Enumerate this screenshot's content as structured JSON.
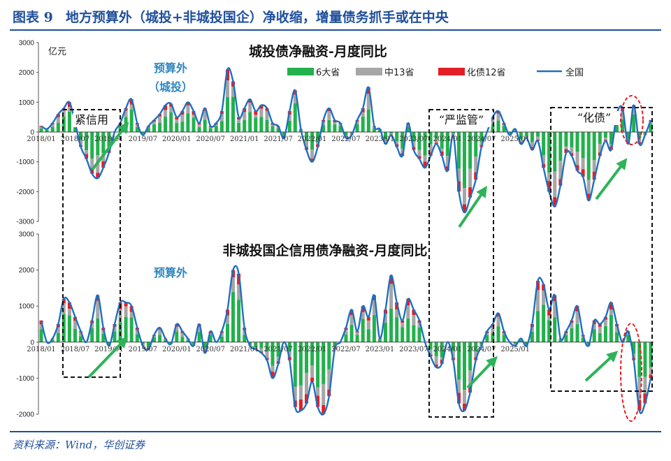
{
  "figure": {
    "number": "图表 9",
    "title": "地方预算外（城投+非城投国企）净收缩，增量债务抓手或在中央",
    "source": "资料来源：Wind，华创证券"
  },
  "colors": {
    "green": "#22b14c",
    "gray": "#a6a6a6",
    "red": "#e41e26",
    "line": "#1f6fc0",
    "title_blue": "#1f4f9c",
    "annotation_blue": "#2e86c1",
    "arrow": "#2fb25a",
    "circle": "#e41e26"
  },
  "chart_data": [
    {
      "type": "bar",
      "stacked": true,
      "title": "城投债净融资-月度同比",
      "ylabel": "亿元",
      "ylim": [
        -3000,
        3000
      ],
      "yticks": [
        "3000",
        "2000",
        "1000",
        "0",
        "-1000",
        "-2000",
        "-3000"
      ],
      "xticks": [
        "2018/01",
        "2018/07",
        "2019/01",
        "2019/07",
        "2020/01",
        "2020/07",
        "2021/01",
        "2021/07",
        "2022/01",
        "2022/07",
        "2023/01",
        "2023/07",
        "2024/01",
        "2024/07",
        "2025/01"
      ],
      "legend": [
        "6大省",
        "中13省",
        "化债12省",
        "全国"
      ],
      "legend_position": "top-right",
      "total_line_name": "全国",
      "total_line": [
        200,
        100,
        300,
        600,
        800,
        1000,
        300,
        -500,
        -900,
        -1400,
        -1550,
        -1200,
        -700,
        0,
        300,
        800,
        1100,
        300,
        -100,
        200,
        400,
        600,
        900,
        950,
        500,
        700,
        1000,
        700,
        300,
        800,
        200,
        300,
        700,
        2100,
        1700,
        500,
        800,
        1100,
        700,
        900,
        800,
        300,
        200,
        -200,
        700,
        1400,
        100,
        -600,
        -1000,
        -500,
        400,
        800,
        400,
        300,
        -200,
        -100,
        400,
        800,
        1500,
        200,
        100,
        -400,
        -100,
        -500,
        -800,
        300,
        -600,
        -900,
        -1200,
        -800,
        -400,
        -800,
        -1300,
        -100,
        -2000,
        -2700,
        -2200,
        -1600,
        -500,
        0,
        500,
        700,
        300,
        -100,
        100,
        -400,
        -200,
        -600,
        -300,
        -1200,
        -2000,
        -2500,
        -1800,
        -700,
        -800,
        -1300,
        -1500,
        -2300,
        -1600,
        -800,
        -300,
        -600,
        600,
        800,
        -400,
        900,
        -400,
        -100,
        400
      ]
    },
    {
      "type": "bar",
      "stacked": true,
      "title": "非城投国企信用债净融资-月度同比",
      "ylabel": "",
      "ylim": [
        -2000,
        3000
      ],
      "yticks": [
        "3000",
        "2000",
        "1000",
        "0",
        "-1000",
        "-2000"
      ],
      "xticks": [
        "2018/01",
        "2018/07",
        "2019/01",
        "2019/07",
        "2020/01",
        "2020/07",
        "2021/01",
        "2021/07",
        "2022/01",
        "2022/07",
        "2023/01",
        "2023/07",
        "2024/01",
        "2024/07",
        "2025/01"
      ],
      "total_line": [
        600,
        0,
        100,
        500,
        1200,
        1100,
        700,
        300,
        0,
        600,
        1300,
        400,
        -100,
        500,
        1100,
        1100,
        1000,
        400,
        -100,
        -200,
        200,
        400,
        100,
        -50,
        500,
        300,
        100,
        -100,
        500,
        -300,
        300,
        0,
        300,
        900,
        2000,
        1900,
        400,
        -100,
        -200,
        -300,
        -500,
        -1000,
        -600,
        0,
        -500,
        -1800,
        -1900,
        -1700,
        -1100,
        -1800,
        -2000,
        -1500,
        -200,
        0,
        400,
        900,
        300,
        1000,
        700,
        1300,
        100,
        900,
        1850,
        1100,
        600,
        1200,
        900,
        600,
        0,
        -400,
        -700,
        -600,
        0,
        -500,
        -1700,
        -1900,
        -1400,
        -500,
        -100,
        300,
        500,
        800,
        300,
        0,
        -100,
        100,
        -100,
        500,
        1700,
        1600,
        900,
        1300,
        100,
        300,
        600,
        1000,
        200,
        -100,
        600,
        500,
        700,
        1100,
        500,
        0,
        300,
        -500,
        -1900,
        -1700,
        -1000
      ]
    }
  ],
  "annotations": {
    "budget_label_top": "预算外",
    "budget_label_top_sub": "（城投）",
    "budget_label_bottom": "预算外",
    "box1": "紧信用",
    "box2": "“严监管”",
    "box3": "“化债”"
  }
}
